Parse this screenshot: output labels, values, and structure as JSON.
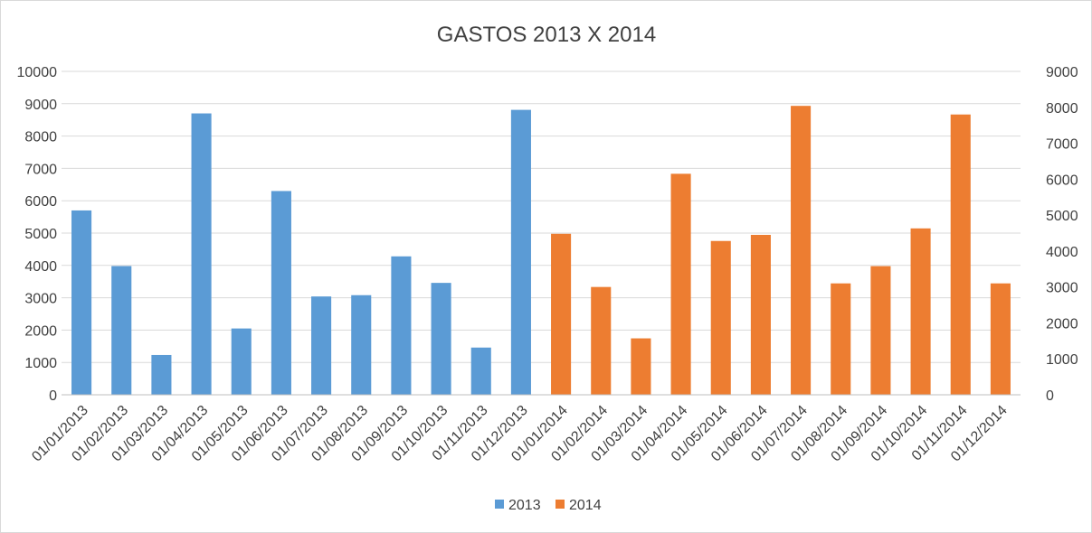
{
  "chart_data": {
    "type": "bar",
    "title": "GASTOS 2013 X 2014",
    "xlabel": "",
    "ylabel": "",
    "y_left": {
      "range": [
        0,
        10000
      ],
      "ticks": [
        "0",
        "1000",
        "2000",
        "3000",
        "4000",
        "5000",
        "6000",
        "7000",
        "8000",
        "9000",
        "10000"
      ]
    },
    "y_right": {
      "range": [
        0,
        9000
      ],
      "ticks": [
        "0",
        "1000",
        "2000",
        "3000",
        "4000",
        "5000",
        "6000",
        "7000",
        "8000",
        "9000"
      ]
    },
    "grid": true,
    "legend": "bottom",
    "series": [
      {
        "name": "2013",
        "color": "#5b9bd5",
        "axis": "left",
        "categories": [
          "01/01/2013",
          "01/02/2013",
          "01/03/2013",
          "01/04/2013",
          "01/05/2013",
          "01/06/2013",
          "01/07/2013",
          "01/08/2013",
          "01/09/2013",
          "01/10/2013",
          "01/11/2013",
          "01/12/2013"
        ],
        "values": [
          5700,
          3980,
          1230,
          8700,
          2050,
          6300,
          3040,
          3080,
          4280,
          3460,
          1460,
          8810
        ]
      },
      {
        "name": "2014",
        "color": "#ed7d31",
        "axis": "right",
        "categories": [
          "01/01/2014",
          "01/02/2014",
          "01/03/2014",
          "01/04/2014",
          "01/05/2014",
          "01/06/2014",
          "01/07/2014",
          "01/08/2014",
          "01/09/2014",
          "01/10/2014",
          "01/11/2014",
          "01/12/2014"
        ],
        "values": [
          4480,
          3000,
          1570,
          6150,
          4280,
          4450,
          8040,
          3100,
          3580,
          4630,
          7800,
          3100
        ]
      }
    ]
  }
}
